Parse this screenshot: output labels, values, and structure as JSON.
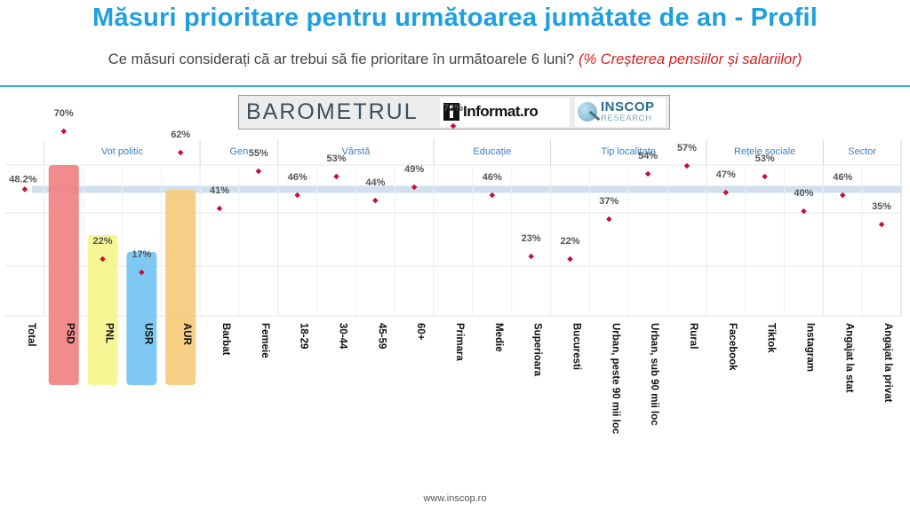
{
  "header": {
    "title": "Măsuri prioritare pentru următoarea jumătate de an - Profil",
    "subtitle_main": "Ce măsuri considerați că ar trebui să fie prioritare în următoarele 6 luni?",
    "subtitle_highlight": "(% Creșterea pensiilor și salariilor)"
  },
  "logos": {
    "barometrul": "BAROMETRUL",
    "informat": "Informat.ro",
    "inscop_name": "INSCOP",
    "inscop_sub": "RESEARCH"
  },
  "footer": {
    "url": "www.inscop.ro"
  },
  "colors": {
    "title": "#1ea0e0",
    "highlight": "#d21f1f",
    "point": "#c8102e",
    "total_band": "#c9d9ec",
    "PSD": "#f07f7f",
    "PNL": "#f6f58a",
    "USR": "#6fc3f2",
    "AUR": "#f5c978"
  },
  "chart_data": {
    "type": "scatter",
    "title": "Măsuri prioritare pentru următoarea jumătate de an - Profil",
    "ylim": [
      0,
      100
    ],
    "reference_line": 48.2,
    "grid": true,
    "groups": [
      {
        "name": "",
        "categories": [
          "Total"
        ]
      },
      {
        "name": "Vot politic",
        "categories": [
          "PSD",
          "PNL",
          "USR",
          "AUR"
        ]
      },
      {
        "name": "Gen",
        "categories": [
          "Barbat",
          "Femeie"
        ]
      },
      {
        "name": "Vârstă",
        "categories": [
          "18-29",
          "30-44",
          "45-59",
          "60+"
        ]
      },
      {
        "name": "Educație",
        "categories": [
          "Primara",
          "Medie",
          "Superioara"
        ]
      },
      {
        "name": "Tip localitate",
        "categories": [
          "Bucuresti",
          "Urban, peste 90 mii loc",
          "Urban, sub 90 mii loc",
          "Rural"
        ]
      },
      {
        "name": "Rețele sociale",
        "categories": [
          "Facebook",
          "Tiktok",
          "Instagram"
        ]
      },
      {
        "name": "Sector",
        "categories": [
          "Angajat la stat",
          "Angajat la privat"
        ]
      }
    ],
    "categories": [
      "Total",
      "PSD",
      "PNL",
      "USR",
      "AUR",
      "Barbat",
      "Femeie",
      "18-29",
      "30-44",
      "45-59",
      "60+",
      "Primara",
      "Medie",
      "Superioara",
      "Bucuresti",
      "Urban, peste 90 mii loc",
      "Urban, sub 90 mii loc",
      "Rural",
      "Facebook",
      "Tiktok",
      "Instagram",
      "Angajat la stat",
      "Angajat la privat"
    ],
    "values": [
      48.2,
      70,
      22,
      17,
      62,
      41,
      55,
      46,
      53,
      44,
      49,
      72,
      46,
      23,
      22,
      37,
      54,
      57,
      47,
      53,
      40,
      46,
      35
    ],
    "labels": [
      "48.2%",
      "70%",
      "22%",
      "17%",
      "62%",
      "41%",
      "55%",
      "46%",
      "53%",
      "44%",
      "49%",
      "72%",
      "46%",
      "23%",
      "22%",
      "37%",
      "54%",
      "57%",
      "47%",
      "53%",
      "40%",
      "46%",
      "35%"
    ]
  }
}
